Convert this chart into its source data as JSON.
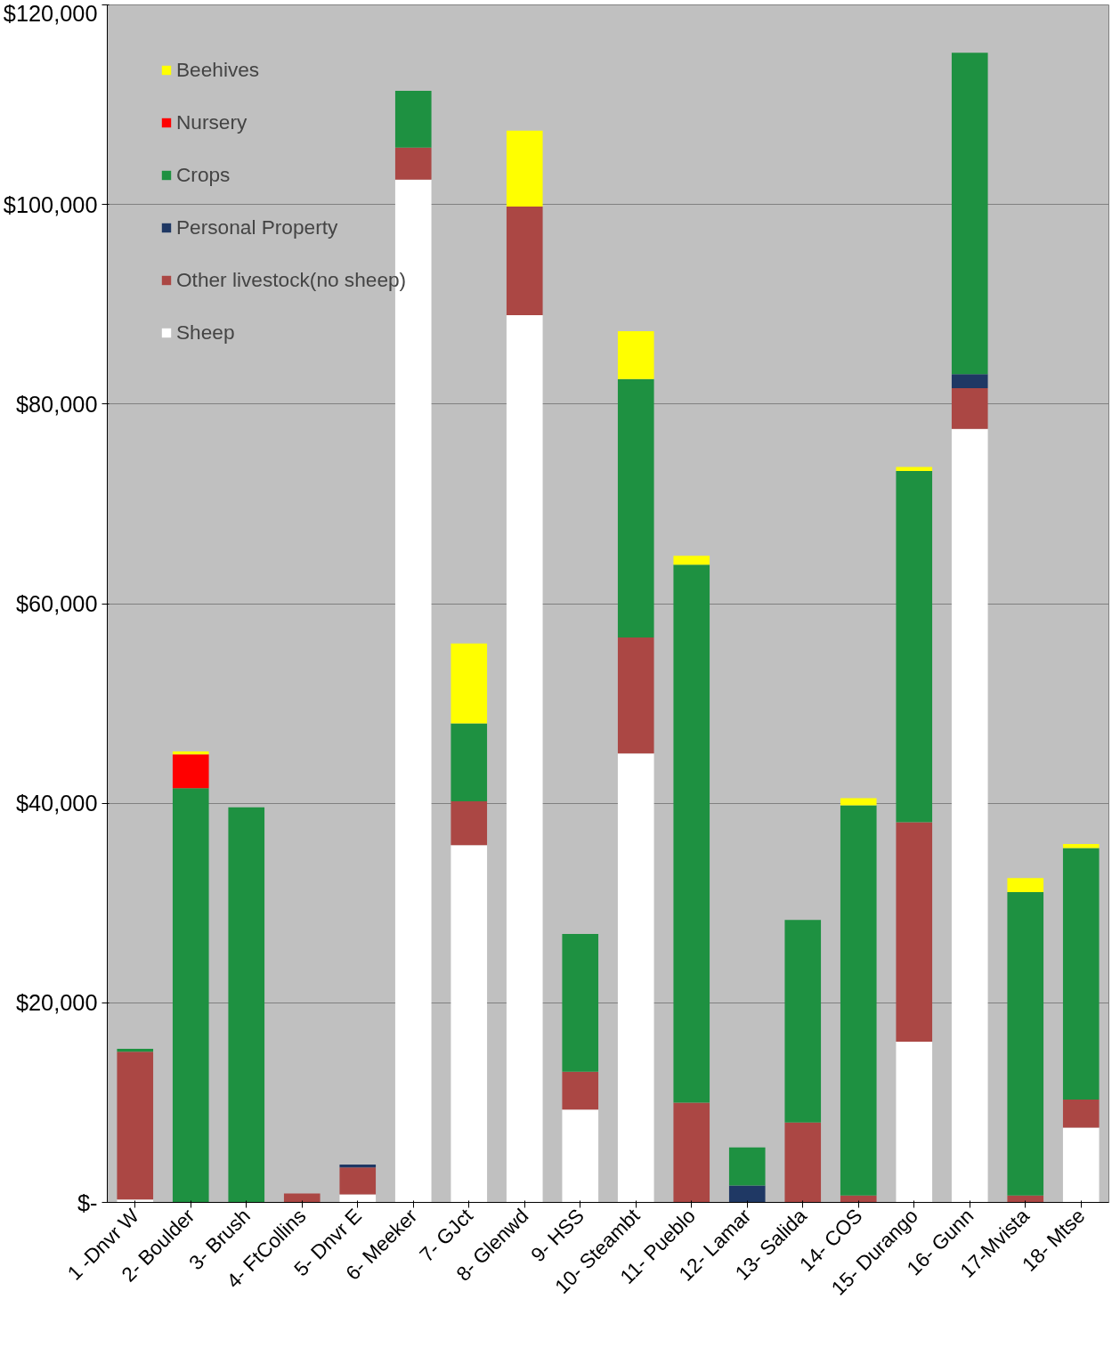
{
  "chart_data": {
    "type": "bar",
    "stacked": true,
    "legend": "top left",
    "grid": "y",
    "categories": [
      "1 -Dnvr W",
      "2- Boulder",
      "3- Brush",
      "4- FtCollins",
      "5- Dnvr E",
      "6- Meeker",
      "7- GJct",
      "8- Glenwd",
      "9- HSS",
      "10- Steambt",
      "11- Pueblo",
      "12- Lamar",
      "13- Salida",
      "14- COS",
      "15- Durango",
      "16- Gunn",
      "17-Mvista",
      "18- Mtse"
    ],
    "ylim": [
      0,
      120000
    ],
    "yticks": [
      {
        "value": 0,
        "label": "$-"
      },
      {
        "value": 20000,
        "label": "$20,000"
      },
      {
        "value": 40000,
        "label": "$40,000"
      },
      {
        "value": 60000,
        "label": "$60,000"
      },
      {
        "value": 80000,
        "label": "$80,000"
      },
      {
        "value": 100000,
        "label": "$100,000"
      },
      {
        "value": 120000,
        "label": "$120,000"
      }
    ],
    "series": [
      {
        "name": "Sheep",
        "color": "#ffffff",
        "values": [
          300,
          0,
          0,
          0,
          800,
          102500,
          35800,
          88900,
          9300,
          45000,
          0,
          0,
          0,
          0,
          16100,
          77500,
          0,
          7500
        ]
      },
      {
        "name": "Other livestock(no sheep)",
        "color": "#ab4744",
        "values": [
          14800,
          0,
          0,
          900,
          2700,
          3200,
          4400,
          10900,
          3800,
          11600,
          10000,
          0,
          8000,
          700,
          22000,
          4100,
          700,
          2800
        ]
      },
      {
        "name": "Personal Property",
        "color": "#1f3864",
        "values": [
          0,
          0,
          0,
          0,
          300,
          0,
          0,
          0,
          0,
          0,
          0,
          1700,
          0,
          0,
          0,
          1400,
          0,
          0
        ]
      },
      {
        "name": "Crops",
        "color": "#1e9141",
        "values": [
          300,
          41500,
          39600,
          0,
          0,
          5700,
          7800,
          0,
          13800,
          25900,
          53900,
          3800,
          20300,
          39100,
          35200,
          32200,
          30400,
          25200
        ]
      },
      {
        "name": "Nursery",
        "color": "#ff0000",
        "values": [
          0,
          3400,
          0,
          0,
          0,
          0,
          0,
          0,
          0,
          0,
          0,
          0,
          0,
          0,
          0,
          0,
          0,
          0
        ]
      },
      {
        "name": "Beehives",
        "color": "#ffff00",
        "values": [
          0,
          300,
          0,
          0,
          0,
          0,
          8000,
          7600,
          0,
          4800,
          900,
          0,
          0,
          700,
          400,
          0,
          1400,
          400
        ]
      }
    ]
  }
}
